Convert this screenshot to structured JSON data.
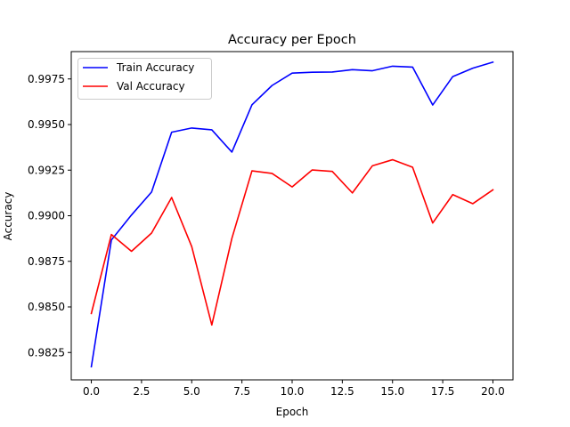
{
  "chart_data": {
    "type": "line",
    "title": "Accuracy per Epoch",
    "xlabel": "Epoch",
    "ylabel": "Accuracy",
    "xlim": [
      -1.0,
      21.0
    ],
    "ylim": [
      0.981,
      0.999
    ],
    "xticks": [
      0.0,
      2.5,
      5.0,
      7.5,
      10.0,
      12.5,
      15.0,
      17.5,
      20.0
    ],
    "xtick_labels": [
      "0.0",
      "2.5",
      "5.0",
      "7.5",
      "10.0",
      "12.5",
      "15.0",
      "17.5",
      "20.0"
    ],
    "yticks": [
      0.9825,
      0.985,
      0.9875,
      0.99,
      0.9925,
      0.995,
      0.9975
    ],
    "ytick_labels": [
      "0.9825",
      "0.9850",
      "0.9875",
      "0.9900",
      "0.9925",
      "0.9950",
      "0.9975"
    ],
    "grid": false,
    "legend_position": "upper-left",
    "x": [
      0,
      1,
      2,
      3,
      4,
      5,
      6,
      7,
      8,
      9,
      10,
      11,
      12,
      13,
      14,
      15,
      16,
      17,
      18,
      19,
      20
    ],
    "series": [
      {
        "name": "Train Accuracy",
        "color": "#0000ff",
        "values": [
          0.98172,
          0.98867,
          0.99004,
          0.9913,
          0.99458,
          0.99481,
          0.99471,
          0.99349,
          0.99608,
          0.99714,
          0.99782,
          0.99787,
          0.99788,
          0.99801,
          0.99795,
          0.9982,
          0.99815,
          0.99607,
          0.99763,
          0.99809,
          0.99842
        ]
      },
      {
        "name": "Val Accuracy",
        "color": "#ff0000",
        "values": [
          0.98464,
          0.98897,
          0.98805,
          0.98905,
          0.991,
          0.98831,
          0.98401,
          0.98876,
          0.99246,
          0.99232,
          0.99158,
          0.99251,
          0.99243,
          0.99125,
          0.99274,
          0.99307,
          0.99266,
          0.9896,
          0.99116,
          0.99066,
          0.99142
        ]
      }
    ]
  }
}
